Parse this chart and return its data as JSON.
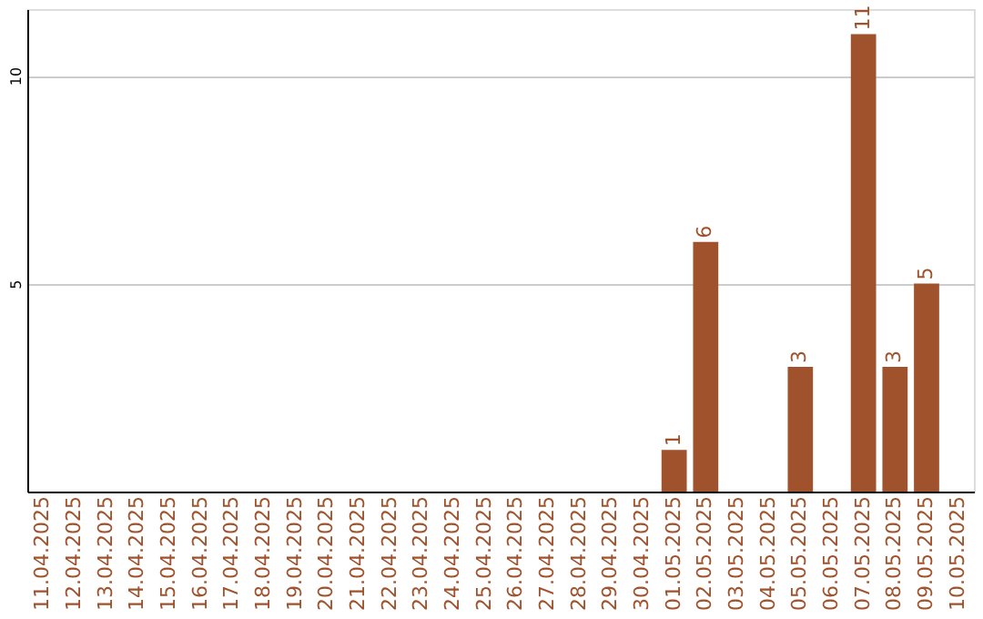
{
  "chart_data": {
    "type": "bar",
    "categories": [
      "11.04.2025",
      "12.04.2025",
      "13.04.2025",
      "14.04.2025",
      "15.04.2025",
      "16.04.2025",
      "17.04.2025",
      "18.04.2025",
      "19.04.2025",
      "20.04.2025",
      "21.04.2025",
      "22.04.2025",
      "23.04.2025",
      "24.04.2025",
      "25.04.2025",
      "26.04.2025",
      "27.04.2025",
      "28.04.2025",
      "29.04.2025",
      "30.04.2025",
      "01.05.2025",
      "02.05.2025",
      "03.05.2025",
      "04.05.2025",
      "05.05.2025",
      "06.05.2025",
      "07.05.2025",
      "08.05.2025",
      "09.05.2025",
      "10.05.2025"
    ],
    "values": [
      0,
      0,
      0,
      0,
      0,
      0,
      0,
      0,
      0,
      0,
      0,
      0,
      0,
      0,
      0,
      0,
      0,
      0,
      0,
      0,
      1,
      6,
      0,
      0,
      3,
      0,
      11,
      3,
      5,
      0
    ],
    "value_labels": [
      null,
      null,
      null,
      null,
      null,
      null,
      null,
      null,
      null,
      null,
      null,
      null,
      null,
      null,
      null,
      null,
      null,
      null,
      null,
      null,
      "1",
      "6",
      null,
      null,
      "3",
      null,
      "11",
      "3",
      "5",
      null
    ],
    "color": "#a0522d",
    "ylim": [
      0,
      11.6
    ],
    "yticks": [
      5,
      10
    ],
    "grid": "y"
  }
}
